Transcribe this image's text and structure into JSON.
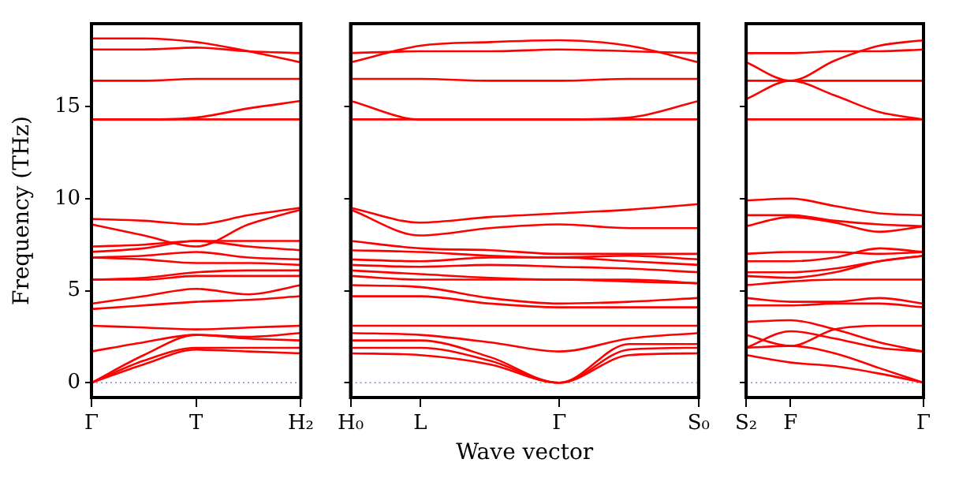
{
  "chart_data": [
    {
      "type": "line",
      "ylabel": "Frequency (THz)",
      "categories": [
        "Γ",
        null,
        "T",
        null,
        "H₂"
      ],
      "ylim": [
        -0.8,
        19.5
      ],
      "yticks": [
        0,
        5,
        10,
        15
      ],
      "marker": "none",
      "line_style": "solid",
      "legend": false,
      "grid": false,
      "ref_lines": [
        {
          "axis": "y",
          "value": 0,
          "color": "#8080ff",
          "line_style": "dotted"
        }
      ],
      "series": [
        {
          "color": "#ff0000",
          "values": [
            0,
            1.0,
            1.8,
            1.7,
            1.6
          ]
        },
        {
          "color": "#ff0000",
          "values": [
            0,
            1.2,
            1.9,
            1.9,
            1.9
          ]
        },
        {
          "color": "#ff0000",
          "values": [
            0,
            1.5,
            2.6,
            2.4,
            2.3
          ]
        },
        {
          "color": "#ff0000",
          "values": [
            1.7,
            2.2,
            2.6,
            2.5,
            2.7
          ]
        },
        {
          "color": "#ff0000",
          "values": [
            3.1,
            3.0,
            2.9,
            3.0,
            3.1
          ]
        },
        {
          "color": "#ff0000",
          "values": [
            4.0,
            4.2,
            4.4,
            4.5,
            4.7
          ]
        },
        {
          "color": "#ff0000",
          "values": [
            4.3,
            4.7,
            5.1,
            4.8,
            5.3
          ]
        },
        {
          "color": "#ff0000",
          "values": [
            5.6,
            5.6,
            5.8,
            5.8,
            5.8
          ]
        },
        {
          "color": "#ff0000",
          "values": [
            5.6,
            5.7,
            6.0,
            6.1,
            6.1
          ]
        },
        {
          "color": "#ff0000",
          "values": [
            6.8,
            6.7,
            6.5,
            6.5,
            6.4
          ]
        },
        {
          "color": "#ff0000",
          "values": [
            6.8,
            6.9,
            7.1,
            6.8,
            6.7
          ]
        },
        {
          "color": "#ff0000",
          "values": [
            7.1,
            7.3,
            7.7,
            7.4,
            7.2
          ]
        },
        {
          "color": "#ff0000",
          "values": [
            7.4,
            7.5,
            7.7,
            7.7,
            7.7
          ]
        },
        {
          "color": "#ff0000",
          "values": [
            8.6,
            8.0,
            7.4,
            8.6,
            9.4
          ]
        },
        {
          "color": "#ff0000",
          "values": [
            8.9,
            8.8,
            8.6,
            9.1,
            9.5
          ]
        },
        {
          "color": "#ff0000",
          "values": [
            14.3,
            14.3,
            14.4,
            14.9,
            15.3
          ]
        },
        {
          "color": "#ff0000",
          "values": [
            14.3,
            14.3,
            14.3,
            14.3,
            14.3
          ]
        },
        {
          "color": "#ff0000",
          "values": [
            16.4,
            16.4,
            16.5,
            16.5,
            16.5
          ]
        },
        {
          "color": "#ff0000",
          "values": [
            18.1,
            18.1,
            18.2,
            18.0,
            17.9
          ]
        },
        {
          "color": "#ff0000",
          "values": [
            18.7,
            18.7,
            18.5,
            18.0,
            17.4
          ]
        }
      ]
    },
    {
      "type": "line",
      "xlabel": "Wave vector",
      "categories": [
        "H₀",
        "L",
        null,
        "Γ",
        null,
        "S₀"
      ],
      "ylim": [
        -0.8,
        19.5
      ],
      "yticks": [
        {
          "value": 0,
          "label": null
        },
        {
          "value": 5,
          "label": null
        },
        {
          "value": 10,
          "label": null
        },
        {
          "value": 15,
          "label": null
        }
      ],
      "tick_labels": "x",
      "marker": "none",
      "line_style": "solid",
      "legend": false,
      "grid": false,
      "ref_lines": [
        {
          "axis": "y",
          "value": 0,
          "color": "#8080ff",
          "line_style": "dotted"
        }
      ],
      "series": [
        {
          "color": "#ff0000",
          "values": [
            1.6,
            1.5,
            1.0,
            0,
            1.5,
            1.6
          ]
        },
        {
          "color": "#ff0000",
          "values": [
            1.9,
            1.9,
            1.2,
            0,
            1.8,
            1.9
          ]
        },
        {
          "color": "#ff0000",
          "values": [
            2.3,
            2.3,
            1.4,
            0,
            2.1,
            2.1
          ]
        },
        {
          "color": "#ff0000",
          "values": [
            2.7,
            2.6,
            2.2,
            1.7,
            2.4,
            2.7
          ]
        },
        {
          "color": "#ff0000",
          "values": [
            3.1,
            3.1,
            3.1,
            3.1,
            3.1,
            3.1
          ]
        },
        {
          "color": "#ff0000",
          "values": [
            4.7,
            4.7,
            4.3,
            4.1,
            4.1,
            4.1
          ]
        },
        {
          "color": "#ff0000",
          "values": [
            5.3,
            5.2,
            4.6,
            4.3,
            4.4,
            4.6
          ]
        },
        {
          "color": "#ff0000",
          "values": [
            5.8,
            5.6,
            5.6,
            5.6,
            5.5,
            5.4
          ]
        },
        {
          "color": "#ff0000",
          "values": [
            6.1,
            5.9,
            5.7,
            5.6,
            5.6,
            5.4
          ]
        },
        {
          "color": "#ff0000",
          "values": [
            6.4,
            6.3,
            6.4,
            6.3,
            6.2,
            6.0
          ]
        },
        {
          "color": "#ff0000",
          "values": [
            6.7,
            6.6,
            6.8,
            6.8,
            6.6,
            6.4
          ]
        },
        {
          "color": "#ff0000",
          "values": [
            7.2,
            7.1,
            6.9,
            6.8,
            6.9,
            6.7
          ]
        },
        {
          "color": "#ff0000",
          "values": [
            7.7,
            7.3,
            7.2,
            7.0,
            7.0,
            7.0
          ]
        },
        {
          "color": "#ff0000",
          "values": [
            9.4,
            8.0,
            8.4,
            8.6,
            8.4,
            8.4
          ]
        },
        {
          "color": "#ff0000",
          "values": [
            9.5,
            8.7,
            9.0,
            9.2,
            9.4,
            9.7
          ]
        },
        {
          "color": "#ff0000",
          "values": [
            14.3,
            14.3,
            14.3,
            14.3,
            14.3,
            14.3
          ]
        },
        {
          "color": "#ff0000",
          "values": [
            15.3,
            14.3,
            14.3,
            14.3,
            14.4,
            15.3
          ]
        },
        {
          "color": "#ff0000",
          "values": [
            16.5,
            16.5,
            16.4,
            16.4,
            16.5,
            16.5
          ]
        },
        {
          "color": "#ff0000",
          "values": [
            17.9,
            18.0,
            18.0,
            18.1,
            18.0,
            17.9
          ]
        },
        {
          "color": "#ff0000",
          "values": [
            17.4,
            18.3,
            18.5,
            18.6,
            18.3,
            17.4
          ]
        }
      ]
    },
    {
      "type": "line",
      "categories": [
        "S₂",
        "F",
        null,
        null,
        "Γ"
      ],
      "ylim": [
        -0.8,
        19.5
      ],
      "yticks": [
        {
          "value": 0,
          "label": null
        },
        {
          "value": 5,
          "label": null
        },
        {
          "value": 10,
          "label": null
        },
        {
          "value": 15,
          "label": null
        }
      ],
      "tick_labels": "x",
      "marker": "none",
      "line_style": "solid",
      "legend": false,
      "grid": false,
      "ref_lines": [
        {
          "axis": "y",
          "value": 0,
          "color": "#8080ff",
          "line_style": "dotted"
        }
      ],
      "series": [
        {
          "color": "#ff0000",
          "values": [
            1.5,
            1.1,
            0.9,
            0.5,
            0
          ]
        },
        {
          "color": "#ff0000",
          "values": [
            1.9,
            2.0,
            1.6,
            0.8,
            0
          ]
        },
        {
          "color": "#ff0000",
          "values": [
            1.9,
            2.8,
            2.4,
            1.9,
            1.7
          ]
        },
        {
          "color": "#ff0000",
          "values": [
            2.6,
            2.0,
            2.9,
            3.1,
            3.1
          ]
        },
        {
          "color": "#ff0000",
          "values": [
            3.3,
            3.4,
            2.9,
            2.2,
            1.7
          ]
        },
        {
          "color": "#ff0000",
          "values": [
            4.2,
            4.2,
            4.3,
            4.3,
            4.1
          ]
        },
        {
          "color": "#ff0000",
          "values": [
            4.6,
            4.4,
            4.4,
            4.6,
            4.3
          ]
        },
        {
          "color": "#ff0000",
          "values": [
            5.3,
            5.5,
            5.6,
            5.6,
            5.6
          ]
        },
        {
          "color": "#ff0000",
          "values": [
            5.8,
            5.7,
            6.0,
            6.6,
            6.9
          ]
        },
        {
          "color": "#ff0000",
          "values": [
            6.0,
            6.0,
            6.2,
            6.6,
            6.9
          ]
        },
        {
          "color": "#ff0000",
          "values": [
            6.6,
            6.6,
            6.8,
            7.3,
            7.1
          ]
        },
        {
          "color": "#ff0000",
          "values": [
            7.0,
            7.1,
            7.1,
            7.0,
            7.1
          ]
        },
        {
          "color": "#ff0000",
          "values": [
            8.5,
            9.0,
            8.7,
            8.2,
            8.5
          ]
        },
        {
          "color": "#ff0000",
          "values": [
            9.1,
            9.1,
            8.8,
            8.6,
            8.5
          ]
        },
        {
          "color": "#ff0000",
          "values": [
            9.9,
            10.0,
            9.6,
            9.2,
            9.1
          ]
        },
        {
          "color": "#ff0000",
          "values": [
            14.3,
            14.3,
            14.3,
            14.3,
            14.3
          ]
        },
        {
          "color": "#ff0000",
          "values": [
            15.4,
            16.4,
            15.6,
            14.7,
            14.3
          ]
        },
        {
          "color": "#ff0000",
          "values": [
            16.4,
            16.4,
            16.4,
            16.4,
            16.4
          ]
        },
        {
          "color": "#ff0000",
          "values": [
            17.9,
            17.9,
            18.0,
            18.0,
            18.1
          ]
        },
        {
          "color": "#ff0000",
          "values": [
            17.4,
            16.4,
            17.5,
            18.3,
            18.6
          ]
        }
      ]
    }
  ]
}
